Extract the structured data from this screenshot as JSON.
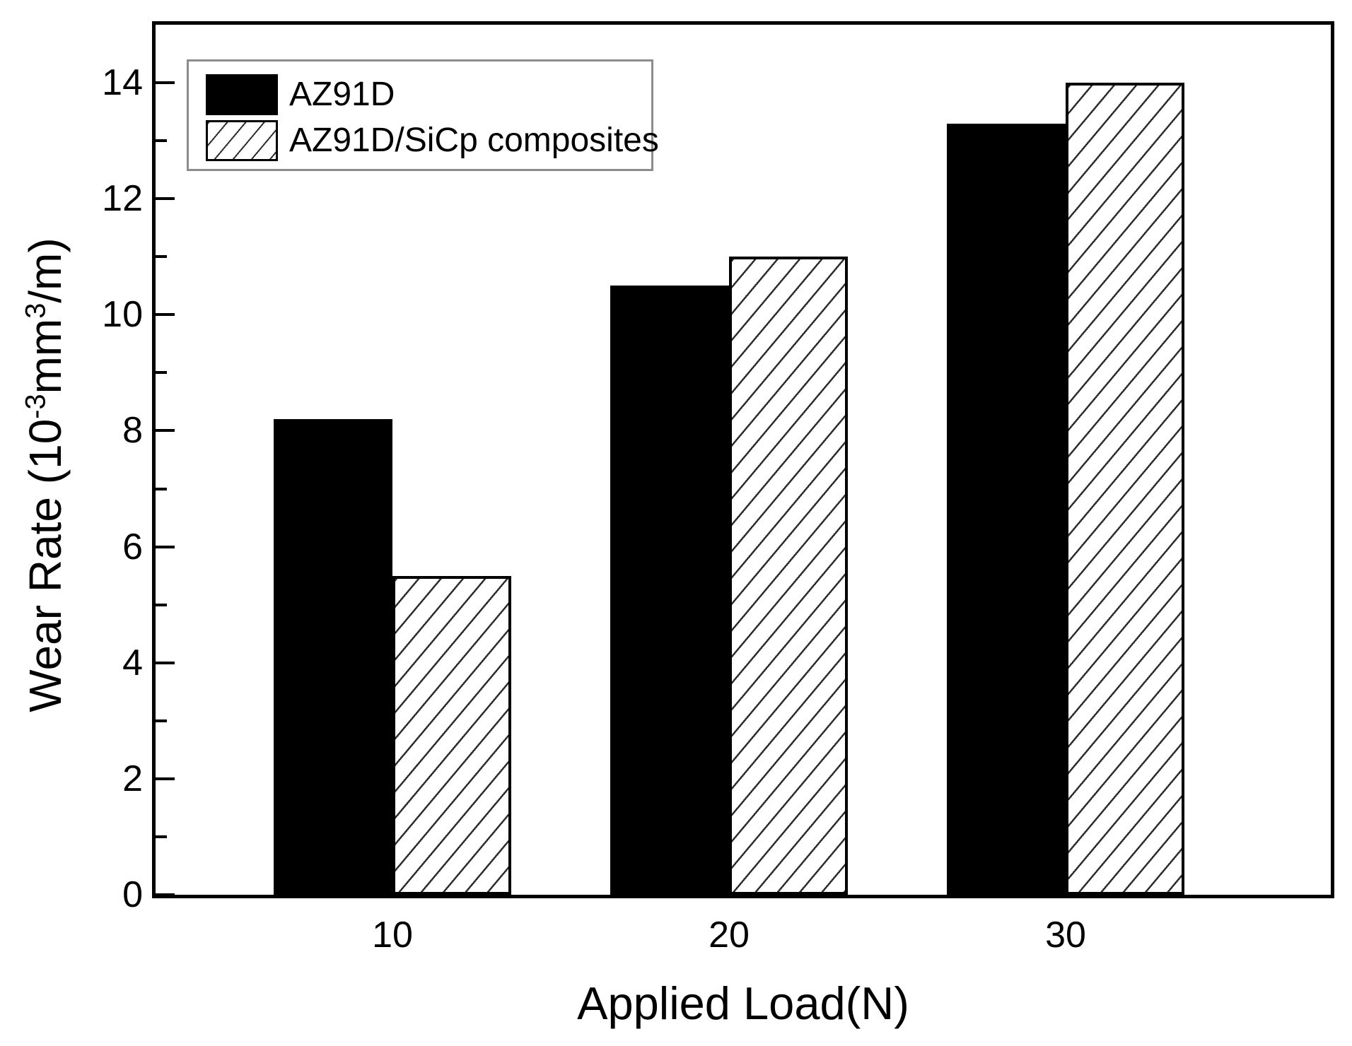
{
  "chart_data": {
    "type": "bar",
    "title": "",
    "xlabel": "Applied Load(N)",
    "ylabel": "Wear Rate (10⁻³mm³/m)",
    "ylabel_parts": {
      "prefix": "Wear Rate (10",
      "exp1": "-3",
      "mid": "mm",
      "exp2": "3",
      "suffix": "/m)"
    },
    "categories": [
      "10",
      "20",
      "30"
    ],
    "series": [
      {
        "name": "AZ91D",
        "pattern": "solid-black",
        "values": [
          8.2,
          10.5,
          13.3
        ]
      },
      {
        "name": "AZ91D/SiCp composites",
        "pattern": "diagonal-hatch",
        "values": [
          5.5,
          11.0,
          14.0
        ]
      }
    ],
    "ylim": [
      0,
      15
    ],
    "yticks_major": [
      0,
      2,
      4,
      6,
      8,
      10,
      12,
      14
    ],
    "yticks_minor": [
      1,
      3,
      5,
      7,
      9,
      11,
      13
    ],
    "grid": false,
    "legend_position": "top-left",
    "colors": {
      "bar_fill": "#000000",
      "hatch_fill": "#ffffff",
      "hatch_line": "#000000",
      "frame": "#000000",
      "legend_border": "#8c8c8c",
      "background": "#ffffff"
    }
  }
}
